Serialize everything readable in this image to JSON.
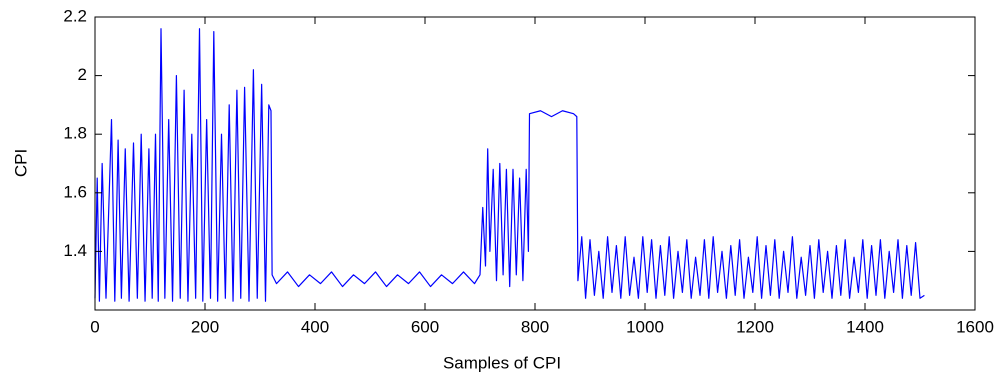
{
  "chart_data": {
    "type": "line",
    "xlabel": "Samples of CPI",
    "ylabel": "CPI",
    "color": "#0000ff",
    "xlim": [
      0,
      1600
    ],
    "xticks": [
      0,
      200,
      400,
      600,
      800,
      1000,
      1200,
      1400,
      1600
    ],
    "ylim": [
      1.2,
      2.2
    ],
    "yticks": [
      1.4,
      1.6,
      1.8,
      2,
      2.2
    ],
    "grid": false,
    "x": [
      0,
      4,
      8,
      13,
      20,
      30,
      36,
      42,
      48,
      55,
      62,
      70,
      77,
      84,
      91,
      98,
      104,
      110,
      115,
      120,
      127,
      134,
      141,
      148,
      155,
      162,
      169,
      176,
      183,
      190,
      196,
      203,
      210,
      216,
      223,
      230,
      237,
      244,
      251,
      258,
      265,
      272,
      280,
      288,
      295,
      303,
      310,
      316,
      320,
      322,
      330,
      350,
      370,
      390,
      410,
      430,
      450,
      470,
      490,
      510,
      530,
      550,
      570,
      590,
      610,
      630,
      650,
      670,
      690,
      700,
      705,
      710,
      714,
      718,
      724,
      730,
      736,
      742,
      748,
      754,
      760,
      766,
      772,
      778,
      784,
      788,
      790,
      810,
      830,
      850,
      870,
      876,
      878,
      885,
      892,
      900,
      908,
      916,
      924,
      932,
      940,
      948,
      956,
      964,
      972,
      980,
      988,
      996,
      1004,
      1012,
      1020,
      1028,
      1036,
      1044,
      1052,
      1060,
      1068,
      1076,
      1084,
      1092,
      1100,
      1108,
      1116,
      1124,
      1132,
      1140,
      1148,
      1156,
      1164,
      1172,
      1180,
      1188,
      1196,
      1204,
      1212,
      1220,
      1228,
      1236,
      1244,
      1252,
      1260,
      1268,
      1276,
      1284,
      1292,
      1300,
      1308,
      1316,
      1324,
      1332,
      1340,
      1348,
      1356,
      1364,
      1372,
      1380,
      1388,
      1396,
      1404,
      1412,
      1420,
      1428,
      1436,
      1444,
      1452,
      1460,
      1468,
      1476,
      1484,
      1492,
      1500,
      1508
    ],
    "values": [
      1.24,
      1.65,
      1.23,
      1.7,
      1.24,
      1.85,
      1.23,
      1.78,
      1.24,
      1.75,
      1.23,
      1.77,
      1.24,
      1.8,
      1.23,
      1.75,
      1.24,
      1.8,
      1.23,
      2.16,
      1.24,
      1.85,
      1.23,
      2.0,
      1.24,
      1.95,
      1.23,
      1.8,
      1.24,
      2.16,
      1.23,
      1.85,
      1.24,
      2.15,
      1.23,
      1.8,
      1.24,
      1.9,
      1.23,
      1.95,
      1.24,
      1.96,
      1.23,
      2.02,
      1.24,
      1.97,
      1.23,
      1.9,
      1.88,
      1.32,
      1.29,
      1.33,
      1.28,
      1.32,
      1.29,
      1.33,
      1.28,
      1.32,
      1.29,
      1.33,
      1.28,
      1.32,
      1.29,
      1.33,
      1.28,
      1.32,
      1.29,
      1.33,
      1.29,
      1.32,
      1.55,
      1.35,
      1.75,
      1.4,
      1.68,
      1.3,
      1.7,
      1.32,
      1.68,
      1.28,
      1.68,
      1.32,
      1.65,
      1.3,
      1.68,
      1.4,
      1.87,
      1.88,
      1.86,
      1.88,
      1.87,
      1.86,
      1.3,
      1.45,
      1.24,
      1.44,
      1.25,
      1.4,
      1.24,
      1.45,
      1.26,
      1.42,
      1.24,
      1.45,
      1.25,
      1.38,
      1.24,
      1.45,
      1.26,
      1.44,
      1.24,
      1.42,
      1.25,
      1.45,
      1.24,
      1.4,
      1.26,
      1.44,
      1.24,
      1.38,
      1.25,
      1.44,
      1.24,
      1.45,
      1.26,
      1.4,
      1.24,
      1.42,
      1.25,
      1.44,
      1.24,
      1.38,
      1.26,
      1.45,
      1.24,
      1.42,
      1.25,
      1.44,
      1.24,
      1.4,
      1.26,
      1.45,
      1.24,
      1.38,
      1.25,
      1.42,
      1.24,
      1.44,
      1.26,
      1.4,
      1.24,
      1.42,
      1.25,
      1.44,
      1.24,
      1.38,
      1.26,
      1.44,
      1.24,
      1.42,
      1.25,
      1.44,
      1.24,
      1.4,
      1.26,
      1.44,
      1.24,
      1.42,
      1.25,
      1.43,
      1.24,
      1.25
    ]
  }
}
